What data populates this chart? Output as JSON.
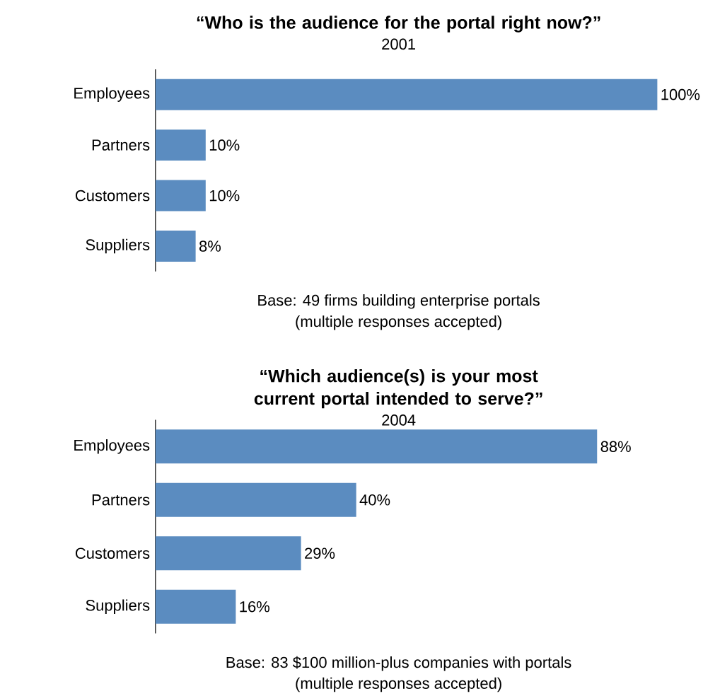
{
  "chart_data": [
    {
      "type": "bar",
      "orientation": "horizontal",
      "title": "“Who is the audience for the portal right now?”",
      "subtitle": "2001",
      "categories": [
        "Employees",
        "Partners",
        "Customers",
        "Suppliers"
      ],
      "values": [
        100,
        10,
        10,
        8
      ],
      "value_labels": [
        "100%",
        "10%",
        "10%",
        "8%"
      ],
      "color": "#5b8cc0",
      "annotations": [
        "Base: 49 firms building enterprise portals",
        "(multiple responses accepted)"
      ]
    },
    {
      "type": "bar",
      "orientation": "horizontal",
      "title": "“Which audience(s) is your most current portal intended to serve?”",
      "subtitle": "2004",
      "categories": [
        "Employees",
        "Partners",
        "Customers",
        "Suppliers"
      ],
      "values": [
        88,
        40,
        29,
        16
      ],
      "value_labels": [
        "88%",
        "40%",
        "29%",
        "16%"
      ],
      "color": "#5b8cc0",
      "annotations": [
        "Base: 83 $100 million-plus companies with portals",
        "(multiple responses accepted)"
      ]
    }
  ]
}
